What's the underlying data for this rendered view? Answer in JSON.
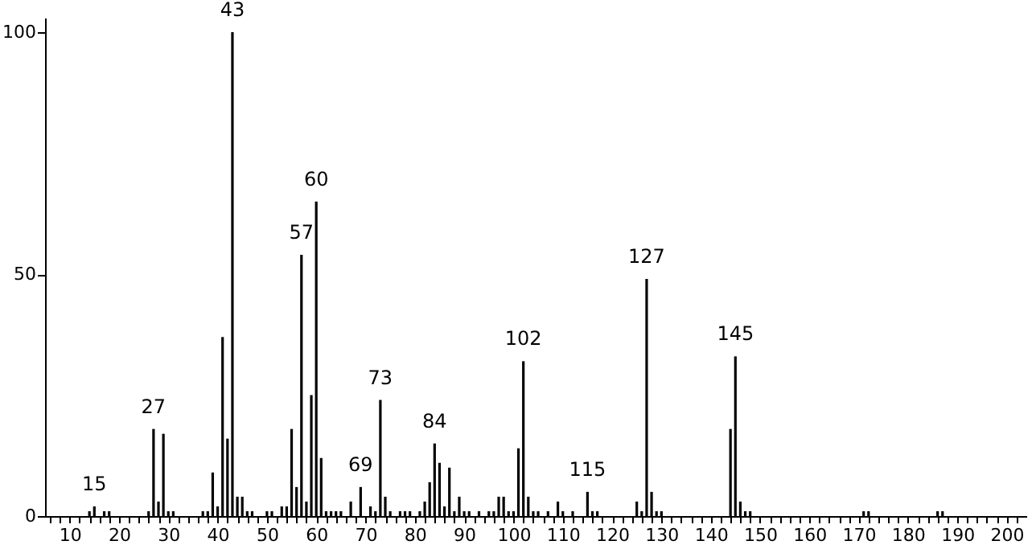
{
  "chart_data": {
    "type": "bar",
    "color": "#000000",
    "x": [
      14,
      15,
      17,
      18,
      26,
      27,
      28,
      29,
      30,
      31,
      37,
      38,
      39,
      40,
      41,
      42,
      43,
      44,
      45,
      46,
      47,
      50,
      51,
      53,
      54,
      55,
      56,
      57,
      58,
      59,
      60,
      61,
      62,
      63,
      64,
      65,
      67,
      69,
      71,
      72,
      73,
      74,
      75,
      77,
      78,
      79,
      81,
      82,
      83,
      84,
      85,
      86,
      87,
      88,
      89,
      90,
      91,
      93,
      95,
      96,
      97,
      98,
      99,
      100,
      101,
      102,
      103,
      104,
      105,
      107,
      109,
      110,
      112,
      115,
      116,
      117,
      125,
      126,
      127,
      128,
      129,
      130,
      144,
      145,
      146,
      147,
      148,
      171,
      172,
      186,
      187
    ],
    "values": [
      1,
      2,
      1,
      1,
      1,
      18,
      3,
      17,
      1,
      1,
      1,
      1,
      9,
      2,
      37,
      16,
      100,
      4,
      4,
      1,
      1,
      1,
      1,
      2,
      2,
      18,
      6,
      54,
      3,
      25,
      65,
      12,
      1,
      1,
      1,
      1,
      3,
      6,
      2,
      1,
      24,
      4,
      1,
      1,
      1,
      1,
      1,
      3,
      7,
      15,
      11,
      2,
      10,
      1,
      4,
      1,
      1,
      1,
      1,
      1,
      4,
      4,
      1,
      1,
      14,
      32,
      4,
      1,
      1,
      1,
      3,
      1,
      1,
      5,
      1,
      1,
      3,
      1,
      49,
      5,
      1,
      1,
      18,
      33,
      3,
      1,
      1,
      1,
      1,
      1,
      1
    ],
    "xlim": [
      5,
      204
    ],
    "ylim": [
      0,
      103
    ],
    "yticks": [
      0,
      50,
      100
    ],
    "xticks": [
      {
        "value": 6,
        "label": null
      },
      {
        "value": 8,
        "label": null
      },
      10,
      {
        "value": 12,
        "label": null
      },
      {
        "value": 14,
        "label": null
      },
      {
        "value": 16,
        "label": null
      },
      {
        "value": 18,
        "label": null
      },
      20,
      {
        "value": 22,
        "label": null
      },
      {
        "value": 24,
        "label": null
      },
      {
        "value": 26,
        "label": null
      },
      {
        "value": 28,
        "label": null
      },
      30,
      {
        "value": 32,
        "label": null
      },
      {
        "value": 34,
        "label": null
      },
      {
        "value": 36,
        "label": null
      },
      {
        "value": 38,
        "label": null
      },
      40,
      {
        "value": 42,
        "label": null
      },
      {
        "value": 44,
        "label": null
      },
      {
        "value": 46,
        "label": null
      },
      {
        "value": 48,
        "label": null
      },
      50,
      {
        "value": 52,
        "label": null
      },
      {
        "value": 54,
        "label": null
      },
      {
        "value": 56,
        "label": null
      },
      {
        "value": 58,
        "label": null
      },
      60,
      {
        "value": 62,
        "label": null
      },
      {
        "value": 64,
        "label": null
      },
      {
        "value": 66,
        "label": null
      },
      {
        "value": 68,
        "label": null
      },
      70,
      {
        "value": 72,
        "label": null
      },
      {
        "value": 74,
        "label": null
      },
      {
        "value": 76,
        "label": null
      },
      {
        "value": 78,
        "label": null
      },
      80,
      {
        "value": 82,
        "label": null
      },
      {
        "value": 84,
        "label": null
      },
      {
        "value": 86,
        "label": null
      },
      {
        "value": 88,
        "label": null
      },
      90,
      {
        "value": 92,
        "label": null
      },
      {
        "value": 94,
        "label": null
      },
      {
        "value": 96,
        "label": null
      },
      {
        "value": 98,
        "label": null
      },
      100,
      {
        "value": 102,
        "label": null
      },
      {
        "value": 104,
        "label": null
      },
      {
        "value": 106,
        "label": null
      },
      {
        "value": 108,
        "label": null
      },
      110,
      {
        "value": 112,
        "label": null
      },
      {
        "value": 114,
        "label": null
      },
      {
        "value": 116,
        "label": null
      },
      {
        "value": 118,
        "label": null
      },
      120,
      {
        "value": 122,
        "label": null
      },
      {
        "value": 124,
        "label": null
      },
      {
        "value": 126,
        "label": null
      },
      {
        "value": 128,
        "label": null
      },
      130,
      {
        "value": 132,
        "label": null
      },
      {
        "value": 134,
        "label": null
      },
      {
        "value": 136,
        "label": null
      },
      {
        "value": 138,
        "label": null
      },
      140,
      {
        "value": 142,
        "label": null
      },
      {
        "value": 144,
        "label": null
      },
      {
        "value": 146,
        "label": null
      },
      {
        "value": 148,
        "label": null
      },
      150,
      {
        "value": 152,
        "label": null
      },
      {
        "value": 154,
        "label": null
      },
      {
        "value": 156,
        "label": null
      },
      {
        "value": 158,
        "label": null
      },
      160,
      {
        "value": 162,
        "label": null
      },
      {
        "value": 164,
        "label": null
      },
      {
        "value": 166,
        "label": null
      },
      {
        "value": 168,
        "label": null
      },
      170,
      {
        "value": 172,
        "label": null
      },
      {
        "value": 174,
        "label": null
      },
      {
        "value": 176,
        "label": null
      },
      {
        "value": 178,
        "label": null
      },
      180,
      {
        "value": 182,
        "label": null
      },
      {
        "value": 184,
        "label": null
      },
      {
        "value": 186,
        "label": null
      },
      {
        "value": 188,
        "label": null
      },
      190,
      {
        "value": 192,
        "label": null
      },
      {
        "value": 194,
        "label": null
      },
      {
        "value": 196,
        "label": null
      },
      {
        "value": 198,
        "label": null
      },
      200,
      {
        "value": 202,
        "label": null
      }
    ],
    "annotations": [
      {
        "text": "15",
        "x": 15,
        "y": 2
      },
      {
        "text": "27",
        "x": 27,
        "y": 18
      },
      {
        "text": "43",
        "x": 43,
        "y": 100
      },
      {
        "text": "57",
        "x": 57,
        "y": 54
      },
      {
        "text": "60",
        "x": 60,
        "y": 65
      },
      {
        "text": "69",
        "x": 69,
        "y": 6
      },
      {
        "text": "73",
        "x": 73,
        "y": 24
      },
      {
        "text": "84",
        "x": 84,
        "y": 15
      },
      {
        "text": "102",
        "x": 102,
        "y": 32
      },
      {
        "text": "115",
        "x": 115,
        "y": 5
      },
      {
        "text": "127",
        "x": 127,
        "y": 49
      },
      {
        "text": "145",
        "x": 145,
        "y": 33
      }
    ],
    "grid": false
  }
}
